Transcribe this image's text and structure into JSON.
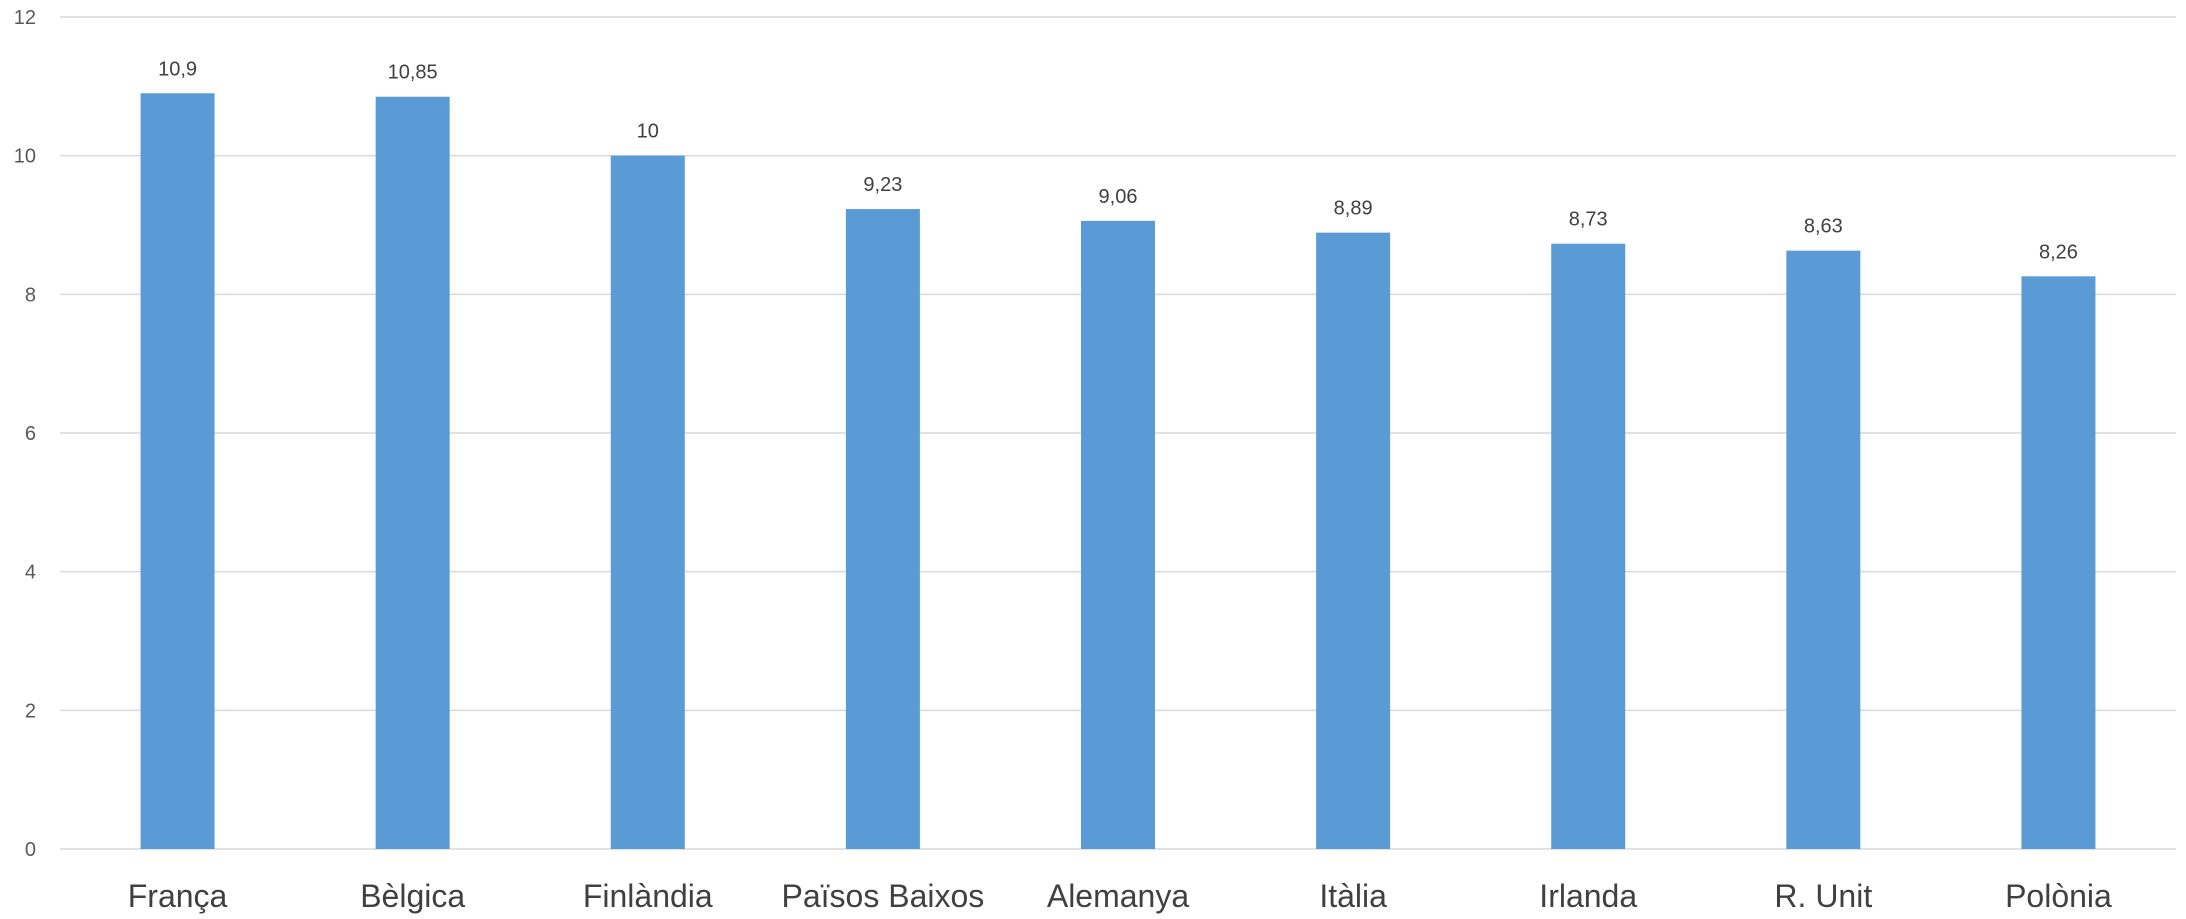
{
  "chart_data": {
    "type": "bar",
    "categories": [
      "França",
      "Bèlgica",
      "Finlàndia",
      "Països Baixos",
      "Alemanya",
      "Itàlia",
      "Irlanda",
      "R. Unit",
      "Polònia"
    ],
    "values": [
      10.9,
      10.85,
      10,
      9.23,
      9.06,
      8.89,
      8.73,
      8.63,
      8.26
    ],
    "value_labels": [
      "10,9",
      "10,85",
      "10",
      "9,23",
      "9,06",
      "8,89",
      "8,73",
      "8,63",
      "8,26"
    ],
    "y_ticks": [
      0,
      2,
      4,
      6,
      8,
      10,
      12
    ],
    "ylim": [
      0,
      12
    ],
    "grid": true,
    "legend": "none",
    "title": "",
    "xlabel": "",
    "ylabel": "",
    "colors": {
      "bar": "#5b9bd5",
      "grid": "#d9d9d9"
    }
  }
}
